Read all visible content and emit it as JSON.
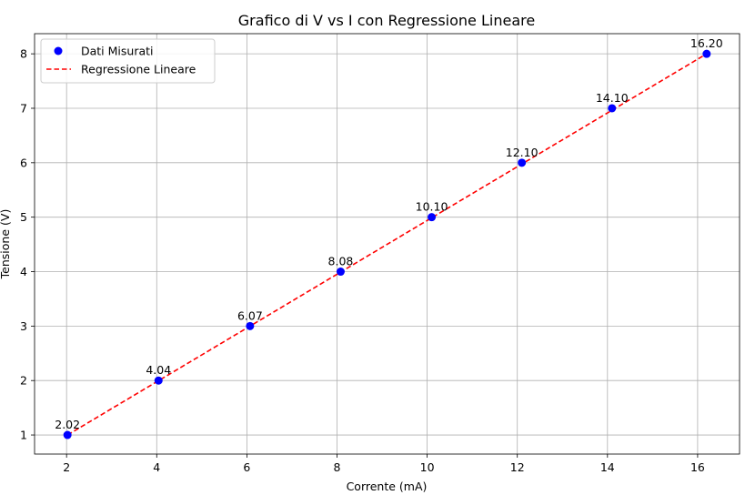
{
  "chart_data": {
    "type": "scatter",
    "title": "Grafico di V vs I con Regressione Lineare",
    "xlabel": "Corrente (mA)",
    "ylabel": "Tensione (V)",
    "xlim": [
      1.29,
      16.93
    ],
    "ylim": [
      0.65,
      8.37
    ],
    "xticks": [
      2,
      4,
      6,
      8,
      10,
      12,
      14,
      16
    ],
    "yticks": [
      1,
      2,
      3,
      4,
      5,
      6,
      7,
      8
    ],
    "grid": true,
    "legend_position": "top-left",
    "series": [
      {
        "name": "Dati Misurati",
        "kind": "scatter",
        "color": "#0000ff",
        "x": [
          2.02,
          4.04,
          6.07,
          8.08,
          10.1,
          12.1,
          14.1,
          16.2
        ],
        "y": [
          1,
          2,
          3,
          4,
          5,
          6,
          7,
          8
        ],
        "labels": [
          "2.02",
          "4.04",
          "6.07",
          "8.08",
          "10.10",
          "12.10",
          "14.10",
          "16.20"
        ]
      },
      {
        "name": "Regressione Lineare",
        "kind": "line",
        "style": "dashed",
        "color": "#ff0000",
        "x": [
          2.02,
          16.2
        ],
        "y": [
          1,
          8
        ]
      }
    ]
  }
}
